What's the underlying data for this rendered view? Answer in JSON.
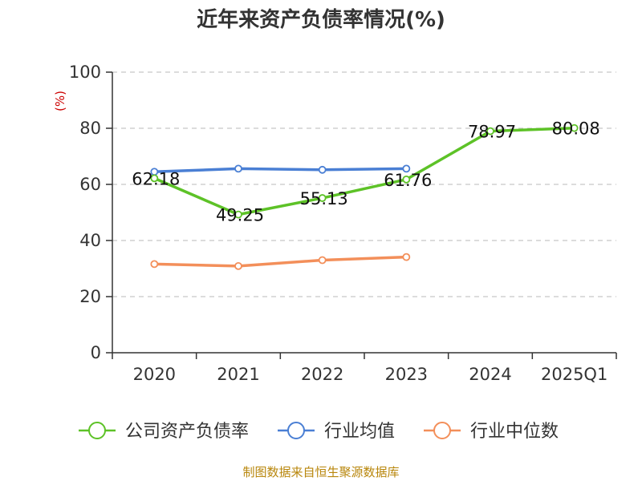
{
  "chart_data": {
    "type": "line",
    "title": "近年来资产负债率情况(%)",
    "ylabel": "(%)",
    "xlabel": "",
    "ylim": [
      0,
      100
    ],
    "yticks": [
      0,
      20,
      40,
      60,
      80,
      100
    ],
    "categories": [
      "2020",
      "2021",
      "2022",
      "2023",
      "2024",
      "2025Q1"
    ],
    "grid": true,
    "legend_position": "bottom",
    "series": [
      {
        "name": "公司资产负债率",
        "color": "#5dc227",
        "values": [
          62.18,
          49.25,
          55.13,
          61.76,
          78.97,
          80.08
        ],
        "labeled": true
      },
      {
        "name": "行业均值",
        "color": "#4a7fd4",
        "values": [
          64.5,
          65.6,
          65.2,
          65.6,
          null,
          null
        ],
        "labeled": false
      },
      {
        "name": "行业中位数",
        "color": "#f38f5a",
        "values": [
          31.6,
          30.9,
          33.0,
          34.1,
          null,
          null
        ],
        "labeled": false
      }
    ]
  },
  "footer": {
    "source": "制图数据来自恒生聚源数据库"
  },
  "colors": {
    "axis": "#333333",
    "grid": "#c8c8c8",
    "ylabel": "#cc0000",
    "source": "#b8860b"
  }
}
